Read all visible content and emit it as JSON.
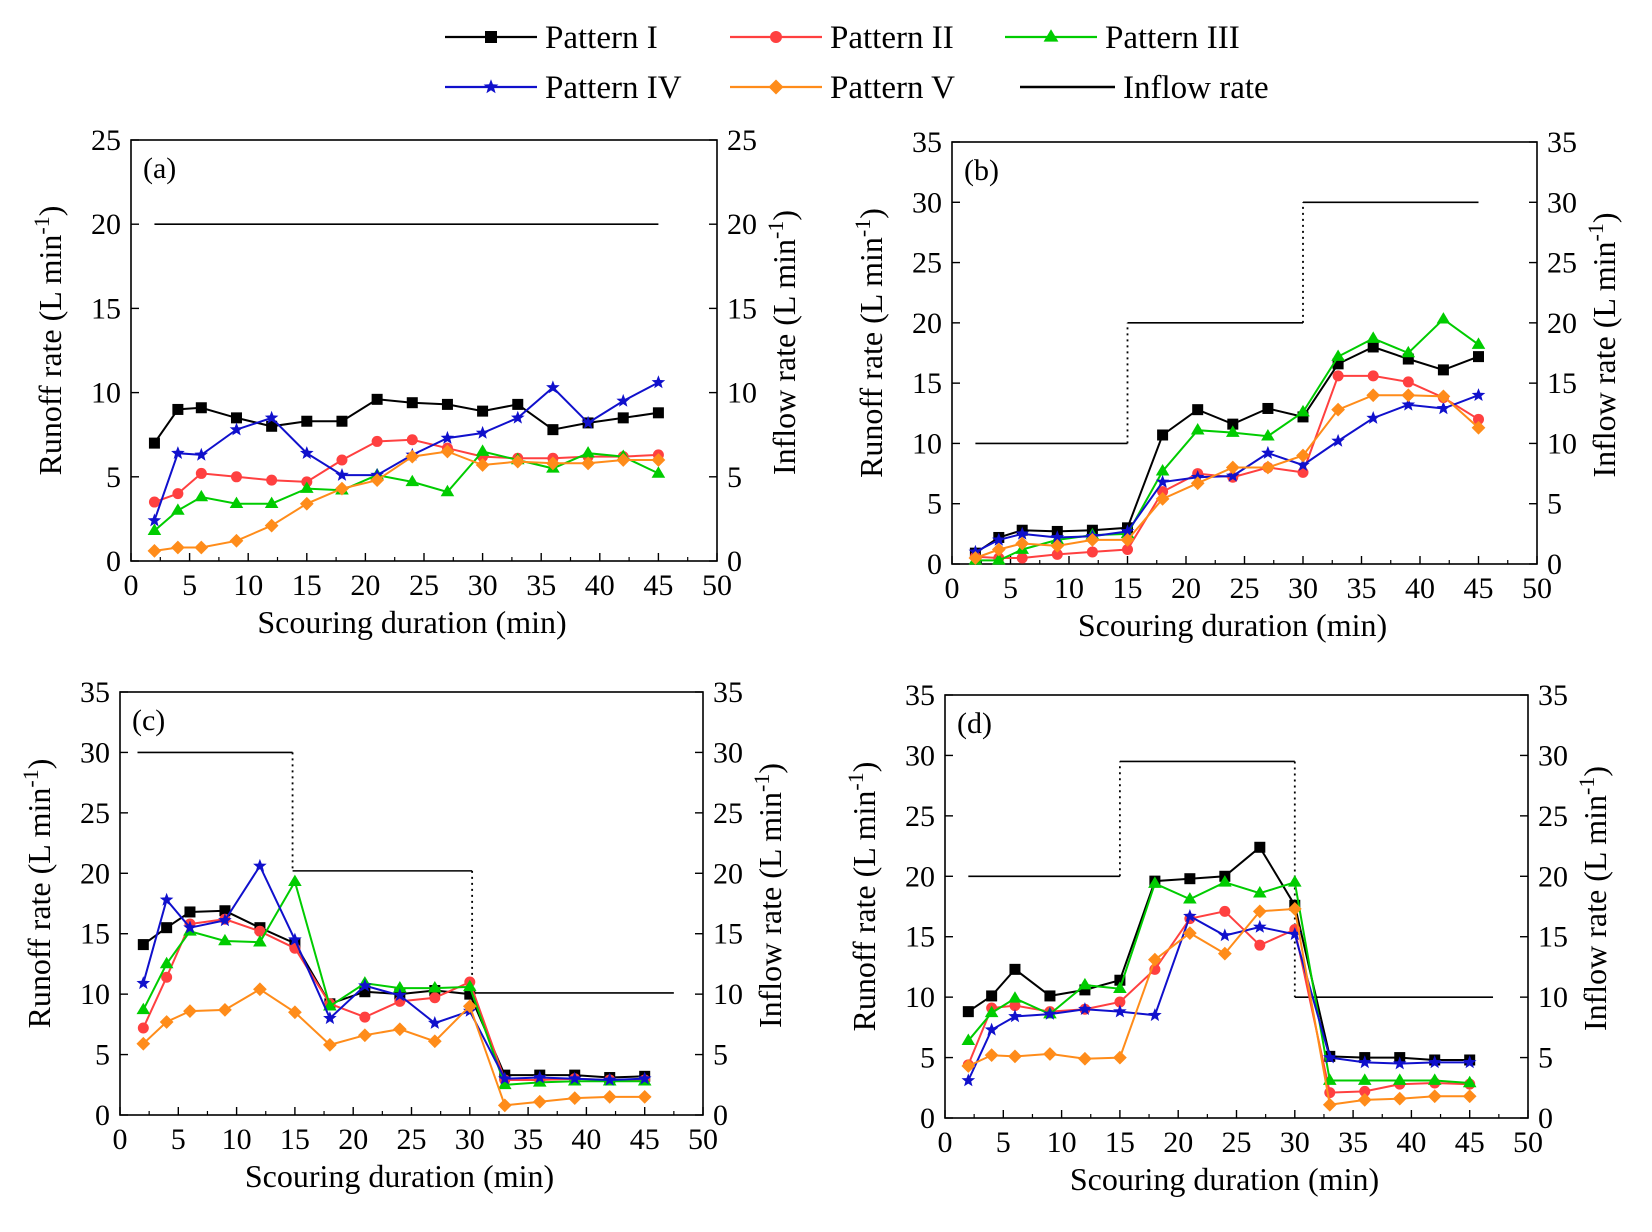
{
  "legend": [
    {
      "label": "Pattern I",
      "color": "#000000",
      "marker": "square"
    },
    {
      "label": "Pattern II",
      "color": "#ff4040",
      "marker": "circle"
    },
    {
      "label": "Pattern III",
      "color": "#00cc00",
      "marker": "triangle"
    },
    {
      "label": "Pattern IV",
      "color": "#1010cc",
      "marker": "star"
    },
    {
      "label": "Pattern V",
      "color": "#ff8c1a",
      "marker": "diamond"
    },
    {
      "label": "Inflow rate",
      "color": "#000000",
      "marker": "none"
    }
  ],
  "chart_data": [
    {
      "type": "line",
      "panel_label": "(a)",
      "xlabel": "Scouring duration (min)",
      "ylabel": "Runoff rate (L min",
      "ylabel_sup": "-1",
      "ylabel_end": ")",
      "y2label": "Inflow rate (L min",
      "y2label_sup": "-1",
      "y2label_end": ")",
      "xlim": [
        0,
        50
      ],
      "ylim": [
        0,
        25
      ],
      "xticks": [
        "0",
        "5",
        "10",
        "15",
        "20",
        "25",
        "30",
        "35",
        "40",
        "45",
        "50"
      ],
      "yticks": [
        "0",
        "5",
        "10",
        "15",
        "20",
        "25"
      ],
      "x": [
        2,
        4,
        6,
        9,
        12,
        15,
        18,
        21,
        24,
        27,
        30,
        33,
        36,
        39,
        42,
        45
      ],
      "series": [
        {
          "name": "Pattern I",
          "values": [
            7.0,
            9.0,
            9.1,
            8.5,
            8.0,
            8.3,
            8.3,
            9.6,
            9.4,
            9.3,
            8.9,
            9.3,
            7.8,
            8.2,
            8.5,
            8.8
          ]
        },
        {
          "name": "Pattern II",
          "values": [
            3.5,
            4.0,
            5.2,
            5.0,
            4.8,
            4.7,
            6.0,
            7.1,
            7.2,
            6.7,
            6.2,
            6.1,
            6.1,
            6.2,
            6.2,
            6.3
          ]
        },
        {
          "name": "Pattern III",
          "values": [
            1.8,
            3.0,
            3.8,
            3.4,
            3.4,
            4.3,
            4.2,
            5.1,
            4.7,
            4.1,
            6.5,
            6.0,
            5.5,
            6.4,
            6.2,
            5.2
          ]
        },
        {
          "name": "Pattern IV",
          "values": [
            2.4,
            6.4,
            6.3,
            7.8,
            8.5,
            6.4,
            5.1,
            5.1,
            6.3,
            7.3,
            7.6,
            8.5,
            10.3,
            8.2,
            9.5,
            10.6
          ]
        },
        {
          "name": "Pattern V",
          "values": [
            0.6,
            0.8,
            0.8,
            1.2,
            2.1,
            3.4,
            4.3,
            4.8,
            6.2,
            6.5,
            5.7,
            5.9,
            5.8,
            5.8,
            6.0,
            6.0
          ]
        }
      ],
      "inflow": [
        [
          2,
          20
        ],
        [
          45,
          20
        ]
      ]
    },
    {
      "type": "line",
      "panel_label": "(b)",
      "xlabel": "Scouring duration (min)",
      "ylabel": "Runoff rate (L min",
      "ylabel_sup": "-1",
      "ylabel_end": ")",
      "y2label": "Inflow rate (L min",
      "y2label_sup": "-1",
      "y2label_end": ")",
      "xlim": [
        0,
        50
      ],
      "ylim": [
        0,
        35
      ],
      "xticks": [
        "0",
        "5",
        "10",
        "15",
        "20",
        "25",
        "30",
        "35",
        "40",
        "45",
        "50"
      ],
      "yticks": [
        "0",
        "5",
        "10",
        "15",
        "20",
        "25",
        "30",
        "35"
      ],
      "x": [
        2,
        4,
        6,
        9,
        12,
        15,
        18,
        21,
        24,
        27,
        30,
        33,
        36,
        39,
        42,
        45
      ],
      "series": [
        {
          "name": "Pattern I",
          "values": [
            0.9,
            2.2,
            2.8,
            2.7,
            2.8,
            3.0,
            10.7,
            12.8,
            11.6,
            12.9,
            12.2,
            16.6,
            18.0,
            17.0,
            16.1,
            17.2
          ]
        },
        {
          "name": "Pattern II",
          "values": [
            0.6,
            0.5,
            0.5,
            0.8,
            1.0,
            1.2,
            6.0,
            7.5,
            7.2,
            8.0,
            7.6,
            15.6,
            15.6,
            15.1,
            13.8,
            12.0
          ]
        },
        {
          "name": "Pattern III",
          "values": [
            0.3,
            0.3,
            1.2,
            2.0,
            2.4,
            2.5,
            7.7,
            11.1,
            10.9,
            10.6,
            12.6,
            17.2,
            18.7,
            17.5,
            20.3,
            18.2
          ]
        },
        {
          "name": "Pattern IV",
          "values": [
            1.0,
            2.0,
            2.5,
            2.2,
            2.3,
            2.7,
            6.8,
            7.2,
            7.3,
            9.2,
            8.2,
            10.2,
            12.1,
            13.2,
            12.9,
            14.0
          ]
        },
        {
          "name": "Pattern V",
          "values": [
            0.5,
            1.2,
            1.7,
            1.5,
            2.0,
            2.0,
            5.4,
            6.7,
            8.0,
            8.0,
            9.0,
            12.8,
            14.0,
            14.0,
            13.9,
            11.3
          ]
        }
      ],
      "inflow": [
        [
          2,
          10
        ],
        [
          15,
          10
        ],
        [
          15,
          20
        ],
        [
          30,
          20
        ],
        [
          30,
          30
        ],
        [
          45,
          30
        ]
      ]
    },
    {
      "type": "line",
      "panel_label": "(c)",
      "xlabel": "Scouring duration (min)",
      "ylabel": "Runoff rate (L min",
      "ylabel_sup": "-1",
      "ylabel_end": ")",
      "y2label": "Inflow rate (L min",
      "y2label_sup": "-1",
      "y2label_end": ")",
      "xlim": [
        0,
        50
      ],
      "ylim": [
        0,
        35
      ],
      "xticks": [
        "0",
        "5",
        "10",
        "15",
        "20",
        "25",
        "30",
        "35",
        "40",
        "45",
        "50"
      ],
      "yticks": [
        "0",
        "5",
        "10",
        "15",
        "20",
        "25",
        "30",
        "35"
      ],
      "x": [
        2,
        4,
        6,
        9,
        12,
        15,
        18,
        21,
        24,
        27,
        30,
        33,
        36,
        39,
        42,
        45
      ],
      "series": [
        {
          "name": "Pattern I",
          "values": [
            14.1,
            15.5,
            16.8,
            16.9,
            15.5,
            14.2,
            9.2,
            10.2,
            10.0,
            10.3,
            10.0,
            3.3,
            3.3,
            3.3,
            3.1,
            3.2
          ]
        },
        {
          "name": "Pattern II",
          "values": [
            7.2,
            11.4,
            15.8,
            16.2,
            15.2,
            13.8,
            9.2,
            8.1,
            9.4,
            9.7,
            11.0,
            2.9,
            2.9,
            3.0,
            2.9,
            2.9
          ]
        },
        {
          "name": "Pattern III",
          "values": [
            8.7,
            12.5,
            15.2,
            14.4,
            14.3,
            19.3,
            9.0,
            10.9,
            10.5,
            10.5,
            10.6,
            2.5,
            2.7,
            2.8,
            2.8,
            2.8
          ]
        },
        {
          "name": "Pattern IV",
          "values": [
            10.9,
            17.8,
            15.5,
            16.1,
            20.6,
            14.5,
            8.0,
            10.7,
            9.9,
            7.6,
            8.6,
            3.0,
            3.1,
            3.0,
            2.9,
            3.0
          ]
        },
        {
          "name": "Pattern V",
          "values": [
            5.9,
            7.7,
            8.6,
            8.7,
            10.4,
            8.5,
            5.8,
            6.6,
            7.1,
            6.1,
            9.0,
            0.8,
            1.1,
            1.4,
            1.5,
            1.5
          ]
        }
      ],
      "inflow": [
        [
          1.5,
          30
        ],
        [
          14.8,
          30
        ],
        [
          14.8,
          20.2
        ],
        [
          30.2,
          20.2
        ],
        [
          30.2,
          10.1
        ],
        [
          47.5,
          10.1
        ]
      ]
    },
    {
      "type": "line",
      "panel_label": "(d)",
      "xlabel": "Scouring duration (min)",
      "ylabel": "Runoff rate (L min",
      "ylabel_sup": "-1",
      "ylabel_end": ")",
      "y2label": "Inflow rate (L min",
      "y2label_sup": "-1",
      "y2label_end": ")",
      "xlim": [
        0,
        50
      ],
      "ylim": [
        0,
        35
      ],
      "xticks": [
        "0",
        "5",
        "10",
        "15",
        "20",
        "25",
        "30",
        "35",
        "40",
        "45",
        "50"
      ],
      "yticks": [
        "0",
        "5",
        "10",
        "15",
        "20",
        "25",
        "30",
        "35"
      ],
      "x": [
        2,
        4,
        6,
        9,
        12,
        15,
        18,
        21,
        24,
        27,
        30,
        33,
        36,
        39,
        42,
        45
      ],
      "series": [
        {
          "name": "Pattern I",
          "values": [
            8.8,
            10.1,
            12.3,
            10.1,
            10.6,
            11.4,
            19.6,
            19.8,
            20.0,
            22.4,
            17.6,
            5.1,
            5.0,
            5.0,
            4.8,
            4.8
          ]
        },
        {
          "name": "Pattern II",
          "values": [
            4.4,
            9.1,
            9.3,
            8.8,
            9.0,
            9.6,
            12.3,
            16.5,
            17.1,
            14.3,
            15.6,
            2.1,
            2.2,
            2.8,
            2.9,
            2.8
          ]
        },
        {
          "name": "Pattern III",
          "values": [
            6.4,
            8.7,
            9.9,
            8.6,
            11.0,
            10.7,
            19.4,
            18.1,
            19.5,
            18.6,
            19.5,
            3.1,
            3.1,
            3.1,
            3.1,
            2.9
          ]
        },
        {
          "name": "Pattern IV",
          "values": [
            3.1,
            7.3,
            8.4,
            8.6,
            9.0,
            8.8,
            8.5,
            16.7,
            15.1,
            15.8,
            15.2,
            5.0,
            4.6,
            4.5,
            4.6,
            4.6
          ]
        },
        {
          "name": "Pattern V",
          "values": [
            4.3,
            5.2,
            5.1,
            5.3,
            4.9,
            5.0,
            13.1,
            15.3,
            13.6,
            17.1,
            17.3,
            1.1,
            1.5,
            1.6,
            1.8,
            1.8
          ]
        }
      ],
      "inflow": [
        [
          2,
          20
        ],
        [
          15,
          20
        ],
        [
          15,
          29.5
        ],
        [
          30,
          29.5
        ],
        [
          30,
          10
        ],
        [
          47,
          10
        ]
      ]
    }
  ]
}
